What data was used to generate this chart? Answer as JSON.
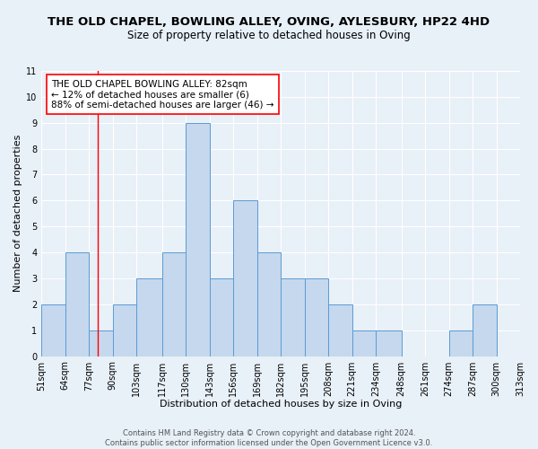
{
  "title": "THE OLD CHAPEL, BOWLING ALLEY, OVING, AYLESBURY, HP22 4HD",
  "subtitle": "Size of property relative to detached houses in Oving",
  "xlabel": "Distribution of detached houses by size in Oving",
  "ylabel": "Number of detached properties",
  "bin_edges": [
    51,
    64,
    77,
    90,
    103,
    117,
    130,
    143,
    156,
    169,
    182,
    195,
    208,
    221,
    234,
    248,
    261,
    274,
    287,
    300,
    313
  ],
  "counts": [
    2,
    4,
    1,
    2,
    3,
    4,
    9,
    3,
    6,
    4,
    3,
    3,
    2,
    1,
    1,
    0,
    0,
    1,
    2,
    0
  ],
  "bar_color": "#c5d8ed",
  "bar_edgecolor": "#5b9bd5",
  "red_line_x": 82,
  "ylim": [
    0,
    11
  ],
  "yticks": [
    0,
    1,
    2,
    3,
    4,
    5,
    6,
    7,
    8,
    9,
    10,
    11
  ],
  "background_color": "#e8f0f8",
  "grid_color": "#ffffff",
  "annotation_line1": "THE OLD CHAPEL BOWLING ALLEY: 82sqm",
  "annotation_line2": "← 12% of detached houses are smaller (6)",
  "annotation_line3": "88% of semi-detached houses are larger (46) →",
  "footer_line1": "Contains HM Land Registry data © Crown copyright and database right 2024.",
  "footer_line2": "Contains public sector information licensed under the Open Government Licence v3.0.",
  "title_fontsize": 9.5,
  "subtitle_fontsize": 8.5,
  "axis_label_fontsize": 8,
  "tick_fontsize": 7,
  "annotation_fontsize": 7.5,
  "footer_fontsize": 6
}
